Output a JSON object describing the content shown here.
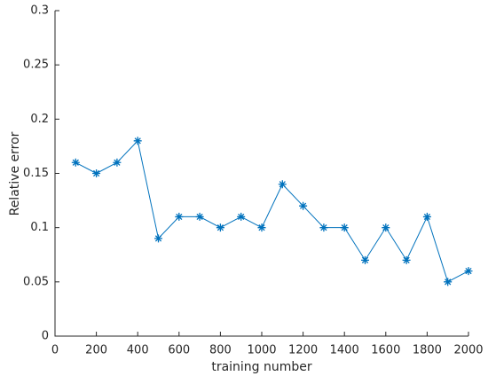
{
  "chart_data": {
    "type": "line",
    "xlabel": "training number",
    "ylabel": "Relative error",
    "x": [
      100,
      200,
      300,
      400,
      500,
      600,
      700,
      800,
      900,
      1000,
      1100,
      1200,
      1300,
      1400,
      1500,
      1600,
      1700,
      1800,
      1900,
      2000
    ],
    "values": [
      0.16,
      0.15,
      0.16,
      0.18,
      0.09,
      0.11,
      0.11,
      0.1,
      0.11,
      0.1,
      0.14,
      0.12,
      0.1,
      0.1,
      0.07,
      0.1,
      0.07,
      0.11,
      0.05,
      0.06
    ],
    "color": "#0072bd",
    "marker": "asterisk",
    "xlim": [
      0,
      2000
    ],
    "xticks": [
      0,
      200,
      400,
      600,
      800,
      1000,
      1200,
      1400,
      1600,
      1800,
      2000
    ],
    "ylim": [
      0,
      0.3
    ],
    "yticks": [
      0,
      0.05,
      0.1,
      0.15,
      0.2,
      0.25,
      0.3
    ],
    "grid": false
  }
}
